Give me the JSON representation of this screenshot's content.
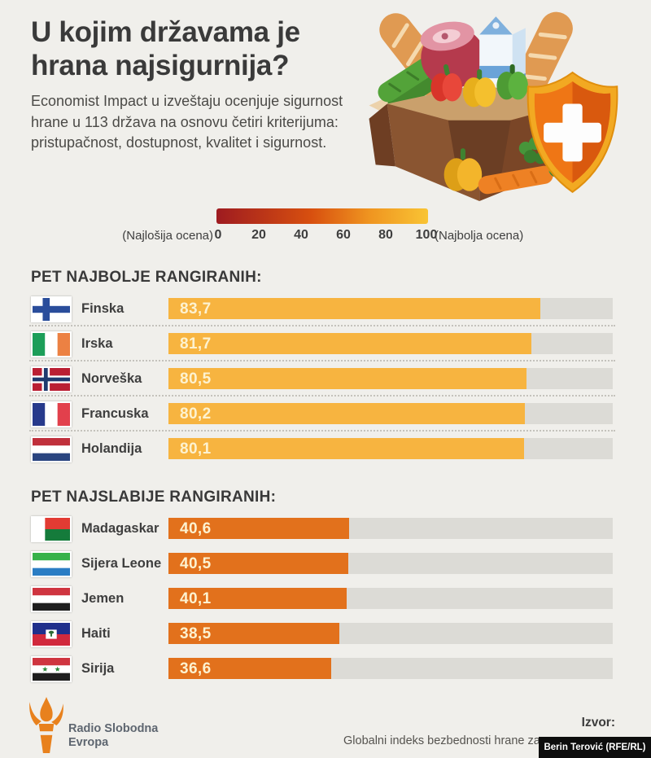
{
  "header": {
    "title": "U kojim državama je hrana najsigurnija?",
    "subtitle": "Economist Impact u izveštaju ocenjuje sigurnost hrane u 113 država na osnovu četiri kriterijuma: pristupačnost, dostupnost, kvalitet i sigurnost."
  },
  "illustration": {
    "name": "food-box-with-shield-illustration"
  },
  "legend": {
    "min_label": "(Najlošija ocena)",
    "max_label": "(Najbolja ocena)",
    "ticks": [
      "0",
      "20",
      "40",
      "60",
      "80",
      "100"
    ],
    "gradient": [
      "#9e1b20",
      "#d8500f",
      "#ef9420",
      "#f9c434"
    ]
  },
  "sections": [
    {
      "heading": "PET NAJBOLJE RANGIRANIH:",
      "bar_color": "#f7b440",
      "separators": true,
      "rows": [
        {
          "country": "Finska",
          "flag": "finland",
          "value": 83.7,
          "value_label": "83,7"
        },
        {
          "country": "Irska",
          "flag": "ireland",
          "value": 81.7,
          "value_label": "81,7"
        },
        {
          "country": "Norveška",
          "flag": "norway",
          "value": 80.5,
          "value_label": "80,5"
        },
        {
          "country": "Francuska",
          "flag": "france",
          "value": 80.2,
          "value_label": "80,2"
        },
        {
          "country": "Holandija",
          "flag": "netherlands",
          "value": 80.1,
          "value_label": "80,1"
        }
      ]
    },
    {
      "heading": "PET NAJSLABIJE RANGIRANIH:",
      "bar_color": "#e2711c",
      "separators": false,
      "rows": [
        {
          "country": "Madagaskar",
          "flag": "madagascar",
          "value": 40.6,
          "value_label": "40,6"
        },
        {
          "country": "Sijera Leone",
          "flag": "sierra-leone",
          "value": 40.5,
          "value_label": "40,5"
        },
        {
          "country": "Jemen",
          "flag": "yemen",
          "value": 40.1,
          "value_label": "40,1"
        },
        {
          "country": "Haiti",
          "flag": "haiti",
          "value": 38.5,
          "value_label": "38,5"
        },
        {
          "country": "Sirija",
          "flag": "syria",
          "value": 36.6,
          "value_label": "36,6"
        }
      ]
    }
  ],
  "footer": {
    "logo_line1": "Radio Slobodna",
    "logo_line2": "Evropa",
    "source_label": "Izvor:",
    "source_text": "Globalni indeks bezbednosti hrane za",
    "credit": "Berin Terović (RFE/RL)"
  },
  "colors": {
    "background": "#f0efeb",
    "track": "#dcdbd6",
    "badge_bg": "#0d0d0d",
    "logo_orange": "#e8811d",
    "value_text": "#fdf2d0"
  },
  "chart_data": {
    "type": "bar",
    "title": "U kojim državama je hrana najsigurnija?",
    "subtitle": "Economist Impact u izveštaju ocenjuje sigurnost hrane u 113 država na osnovu četiri kriterijuma: pristupačnost, dostupnost, kvalitet i sigurnost.",
    "orientation": "horizontal",
    "xlim": [
      0,
      100
    ],
    "scale_ticks": [
      0,
      20,
      40,
      60,
      80,
      100
    ],
    "scale_min_label": "(Najlošija ocena)",
    "scale_max_label": "(Najbolja ocena)",
    "series": [
      {
        "name": "PET NAJBOLJE RANGIRANIH",
        "categories": [
          "Finska",
          "Irska",
          "Norveška",
          "Francuska",
          "Holandija"
        ],
        "values": [
          83.7,
          81.7,
          80.5,
          80.2,
          80.1
        ],
        "color": "#f7b440"
      },
      {
        "name": "PET NAJSLABIJE RANGIRANIH",
        "categories": [
          "Madagaskar",
          "Sijera Leone",
          "Jemen",
          "Haiti",
          "Sirija"
        ],
        "values": [
          40.6,
          40.5,
          40.1,
          38.5,
          36.6
        ],
        "color": "#e2711c"
      }
    ],
    "source": "Globalni indeks bezbednosti hrane za",
    "credit": "Berin Terović (RFE/RL)"
  }
}
